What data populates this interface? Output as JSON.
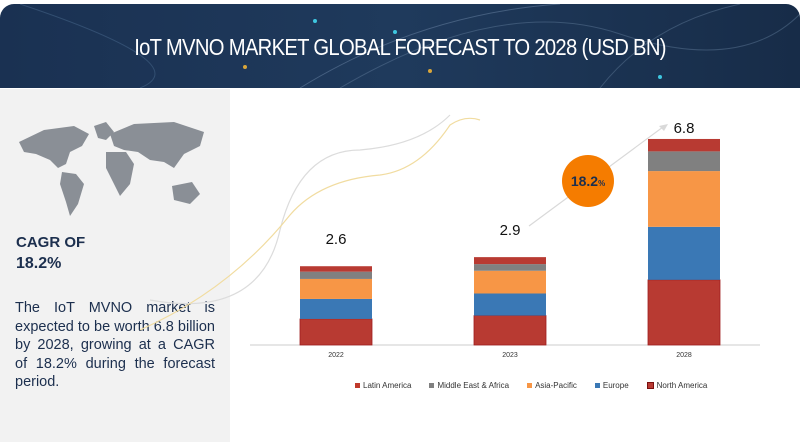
{
  "header": {
    "title": "IoT MVNO MARKET GLOBAL FORECAST TO 2028 (USD BN)"
  },
  "sidebar": {
    "cagr_label": "CAGR OF",
    "cagr_value": "18.2%",
    "description": "The IoT MVNO market is expected to be worth 6.8 billion by 2028, growing at a CAGR of 18.2% during the forecast period."
  },
  "chart_data": {
    "type": "bar",
    "stacked": true,
    "title": "IoT MVNO MARKET GLOBAL FORECAST TO 2028 (USD BN)",
    "categories": [
      "2022",
      "2023",
      "2028"
    ],
    "totals": [
      "2.6",
      "2.9",
      "6.8"
    ],
    "series": [
      {
        "name": "North America",
        "color": "#b83a32",
        "values": [
          0.86,
          0.97,
          2.15
        ]
      },
      {
        "name": "Europe",
        "color": "#3a78b5",
        "values": [
          0.66,
          0.73,
          1.75
        ]
      },
      {
        "name": "Asia-Pacific",
        "color": "#f79646",
        "values": [
          0.66,
          0.75,
          1.84
        ]
      },
      {
        "name": "Middle East & Africa",
        "color": "#808080",
        "values": [
          0.24,
          0.22,
          0.65
        ]
      },
      {
        "name": "Latin America",
        "color": "#b83a32",
        "values": [
          0.18,
          0.23,
          0.41
        ]
      }
    ],
    "legend_order": [
      "Latin America",
      "Middle East & Africa",
      "Asia-Pacific",
      "Europe",
      "North America"
    ],
    "cagr_badge": "18.2",
    "cagr_badge_unit": "%",
    "ylim": [
      0,
      7
    ],
    "legend_position": "bottom"
  }
}
